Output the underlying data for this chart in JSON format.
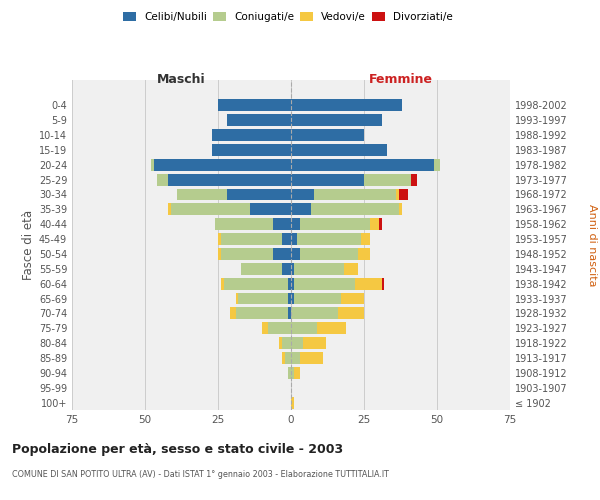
{
  "age_groups": [
    "100+",
    "95-99",
    "90-94",
    "85-89",
    "80-84",
    "75-79",
    "70-74",
    "65-69",
    "60-64",
    "55-59",
    "50-54",
    "45-49",
    "40-44",
    "35-39",
    "30-34",
    "25-29",
    "20-24",
    "15-19",
    "10-14",
    "5-9",
    "0-4"
  ],
  "birth_years": [
    "≤ 1902",
    "1903-1907",
    "1908-1912",
    "1913-1917",
    "1918-1922",
    "1923-1927",
    "1928-1932",
    "1933-1937",
    "1938-1942",
    "1943-1947",
    "1948-1952",
    "1953-1957",
    "1958-1962",
    "1963-1967",
    "1968-1972",
    "1973-1977",
    "1978-1982",
    "1983-1987",
    "1988-1992",
    "1993-1997",
    "1998-2002"
  ],
  "maschi": {
    "celibe": [
      0,
      0,
      0,
      0,
      0,
      0,
      1,
      1,
      1,
      3,
      6,
      3,
      6,
      14,
      22,
      42,
      47,
      27,
      27,
      22,
      25
    ],
    "coniugato": [
      0,
      0,
      1,
      2,
      3,
      8,
      18,
      17,
      22,
      14,
      18,
      21,
      20,
      27,
      17,
      4,
      1,
      0,
      0,
      0,
      0
    ],
    "vedovo": [
      0,
      0,
      0,
      1,
      1,
      2,
      2,
      1,
      1,
      0,
      1,
      1,
      0,
      1,
      0,
      0,
      0,
      0,
      0,
      0,
      0
    ],
    "divorziato": [
      0,
      0,
      0,
      0,
      0,
      0,
      0,
      0,
      0,
      0,
      0,
      0,
      0,
      0,
      0,
      0,
      0,
      0,
      0,
      0,
      0
    ]
  },
  "femmine": {
    "nubile": [
      0,
      0,
      0,
      0,
      0,
      0,
      0,
      1,
      1,
      1,
      3,
      2,
      3,
      7,
      8,
      25,
      49,
      33,
      25,
      31,
      38
    ],
    "coniugata": [
      0,
      0,
      1,
      3,
      4,
      9,
      16,
      16,
      21,
      17,
      20,
      22,
      24,
      30,
      28,
      16,
      2,
      0,
      0,
      0,
      0
    ],
    "vedova": [
      1,
      0,
      2,
      8,
      8,
      10,
      9,
      8,
      9,
      5,
      4,
      3,
      3,
      1,
      1,
      0,
      0,
      0,
      0,
      0,
      0
    ],
    "divorziata": [
      0,
      0,
      0,
      0,
      0,
      0,
      0,
      0,
      1,
      0,
      0,
      0,
      1,
      0,
      3,
      2,
      0,
      0,
      0,
      0,
      0
    ]
  },
  "colors": {
    "celibe": "#2e6da4",
    "coniugato": "#b5cc8e",
    "vedovo": "#f5c842",
    "divorziato": "#cc1111"
  },
  "title": "Popolazione per età, sesso e stato civile - 2003",
  "subtitle": "COMUNE DI SAN POTITO ULTRA (AV) - Dati ISTAT 1° gennaio 2003 - Elaborazione TUTTITALIA.IT",
  "xlabel_left": "Maschi",
  "xlabel_right": "Femmine",
  "ylabel": "Fasce di età",
  "ylabel_right": "Anni di nascita",
  "xlim": 75,
  "bg_color": "#f0f0f0",
  "grid_color": "#cccccc",
  "legend_labels": [
    "Celibi/Nubili",
    "Coniugati/e",
    "Vedovi/e",
    "Divorziati/e"
  ]
}
